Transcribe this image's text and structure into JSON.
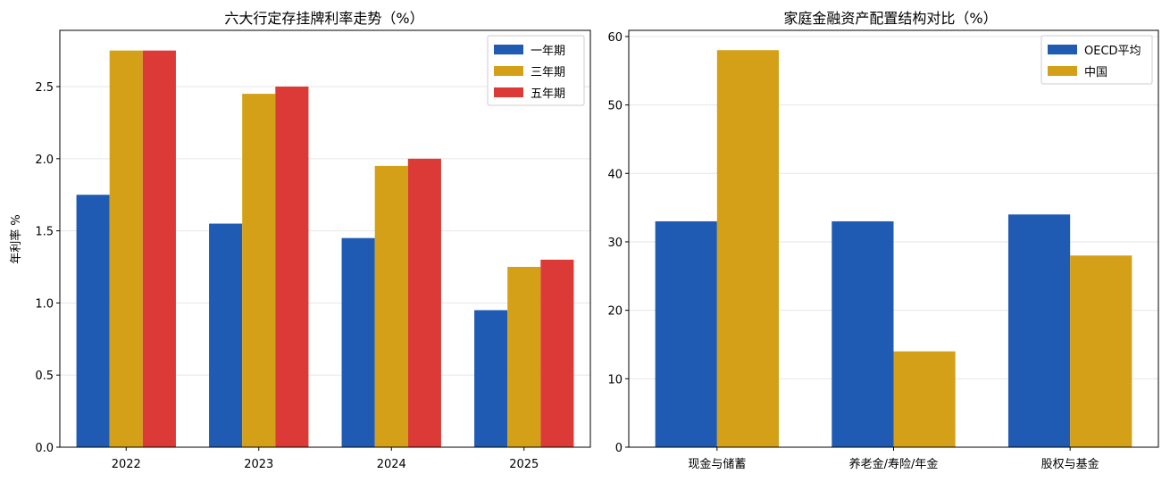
{
  "colors": {
    "blue": "#1f5bb3",
    "gold": "#d4a017",
    "red": "#db3a36",
    "grid": "#e6e6e6"
  },
  "chart_data": [
    {
      "type": "bar",
      "title": "六大行定存挂牌利率走势（%）",
      "xlabel": "",
      "ylabel": "年利率 %",
      "categories": [
        "2022",
        "2023",
        "2024",
        "2025"
      ],
      "series": [
        {
          "name": "一年期",
          "values": [
            1.75,
            1.55,
            1.45,
            0.95
          ],
          "color": "#1f5bb3"
        },
        {
          "name": "三年期",
          "values": [
            2.75,
            2.45,
            1.95,
            1.25
          ],
          "color": "#d4a017"
        },
        {
          "name": "五年期",
          "values": [
            2.75,
            2.5,
            2.0,
            1.3
          ],
          "color": "#db3a36"
        }
      ],
      "ylim": [
        0,
        2.89
      ],
      "yticks": [
        "0.0",
        "0.5",
        "1.0",
        "1.5",
        "2.0",
        "2.5"
      ],
      "grid": "y",
      "legend": "top-right"
    },
    {
      "type": "bar",
      "title": "家庭金融资产配置结构对比（%）",
      "xlabel": "",
      "ylabel": "",
      "categories": [
        "现金与储蓄",
        "养老金/寿险/年金",
        "股权与基金"
      ],
      "series": [
        {
          "name": "OECD平均",
          "values": [
            33,
            33,
            34
          ],
          "color": "#1f5bb3"
        },
        {
          "name": "中国",
          "values": [
            58,
            14,
            28
          ],
          "color": "#d4a017"
        }
      ],
      "ylim": [
        0,
        60.9
      ],
      "yticks": [
        "0",
        "10",
        "20",
        "30",
        "40",
        "50",
        "60"
      ],
      "grid": "y",
      "legend": "top-right"
    }
  ]
}
